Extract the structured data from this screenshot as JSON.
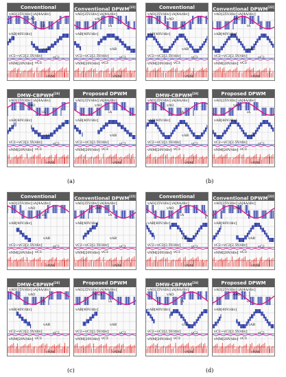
{
  "panels": [
    {
      "tag": "(a)",
      "scopes": [
        {
          "title": "Conventional",
          "sup": ""
        },
        {
          "title": "Conventional DPWM",
          "sup": "[22]"
        },
        {
          "title": "DMW-CBPWM",
          "sup": "[26]"
        },
        {
          "title": "Proposed DPWM",
          "sup": ""
        }
      ]
    },
    {
      "tag": "(b)",
      "scopes": [
        {
          "title": "Conventional",
          "sup": ""
        },
        {
          "title": "Conventional DPWM",
          "sup": "[22]"
        },
        {
          "title": "DMW-CBPWM",
          "sup": "[26]"
        },
        {
          "title": "Proposed DPWM",
          "sup": ""
        }
      ]
    },
    {
      "tag": "(c)",
      "scopes": [
        {
          "title": "Conventional",
          "sup": ""
        },
        {
          "title": "Conventional DPWM",
          "sup": "[22]"
        },
        {
          "title": "DMW-CBPWM",
          "sup": "[26]"
        },
        {
          "title": "Proposed DPWM",
          "sup": ""
        }
      ]
    },
    {
      "tag": "(d)",
      "scopes": [
        {
          "title": "Conventional",
          "sup": ""
        },
        {
          "title": "Conventional DPWM",
          "sup": "[22]"
        },
        {
          "title": "DMW-CBPWM",
          "sup": "[26]"
        },
        {
          "title": "Proposed DPWM",
          "sup": ""
        }
      ]
    }
  ],
  "labels": {
    "vao": "vAO",
    "ia": "iA",
    "vab": "vAB",
    "vc2": "vC2",
    "vc3": "vC3",
    "vnm": "vNM",
    "scale1": "vAO[25V/div] iA[4A/div]",
    "scale2": "vAB[40V/div]",
    "scale3": "vC2~vC2[2.5V/div]",
    "scale4": "vNM[20V/div]"
  },
  "colors": {
    "blue": "#1f2fa0",
    "magenta": "#e0158a",
    "red": "#e0302a",
    "title_bg": "#5a5a5a"
  }
}
